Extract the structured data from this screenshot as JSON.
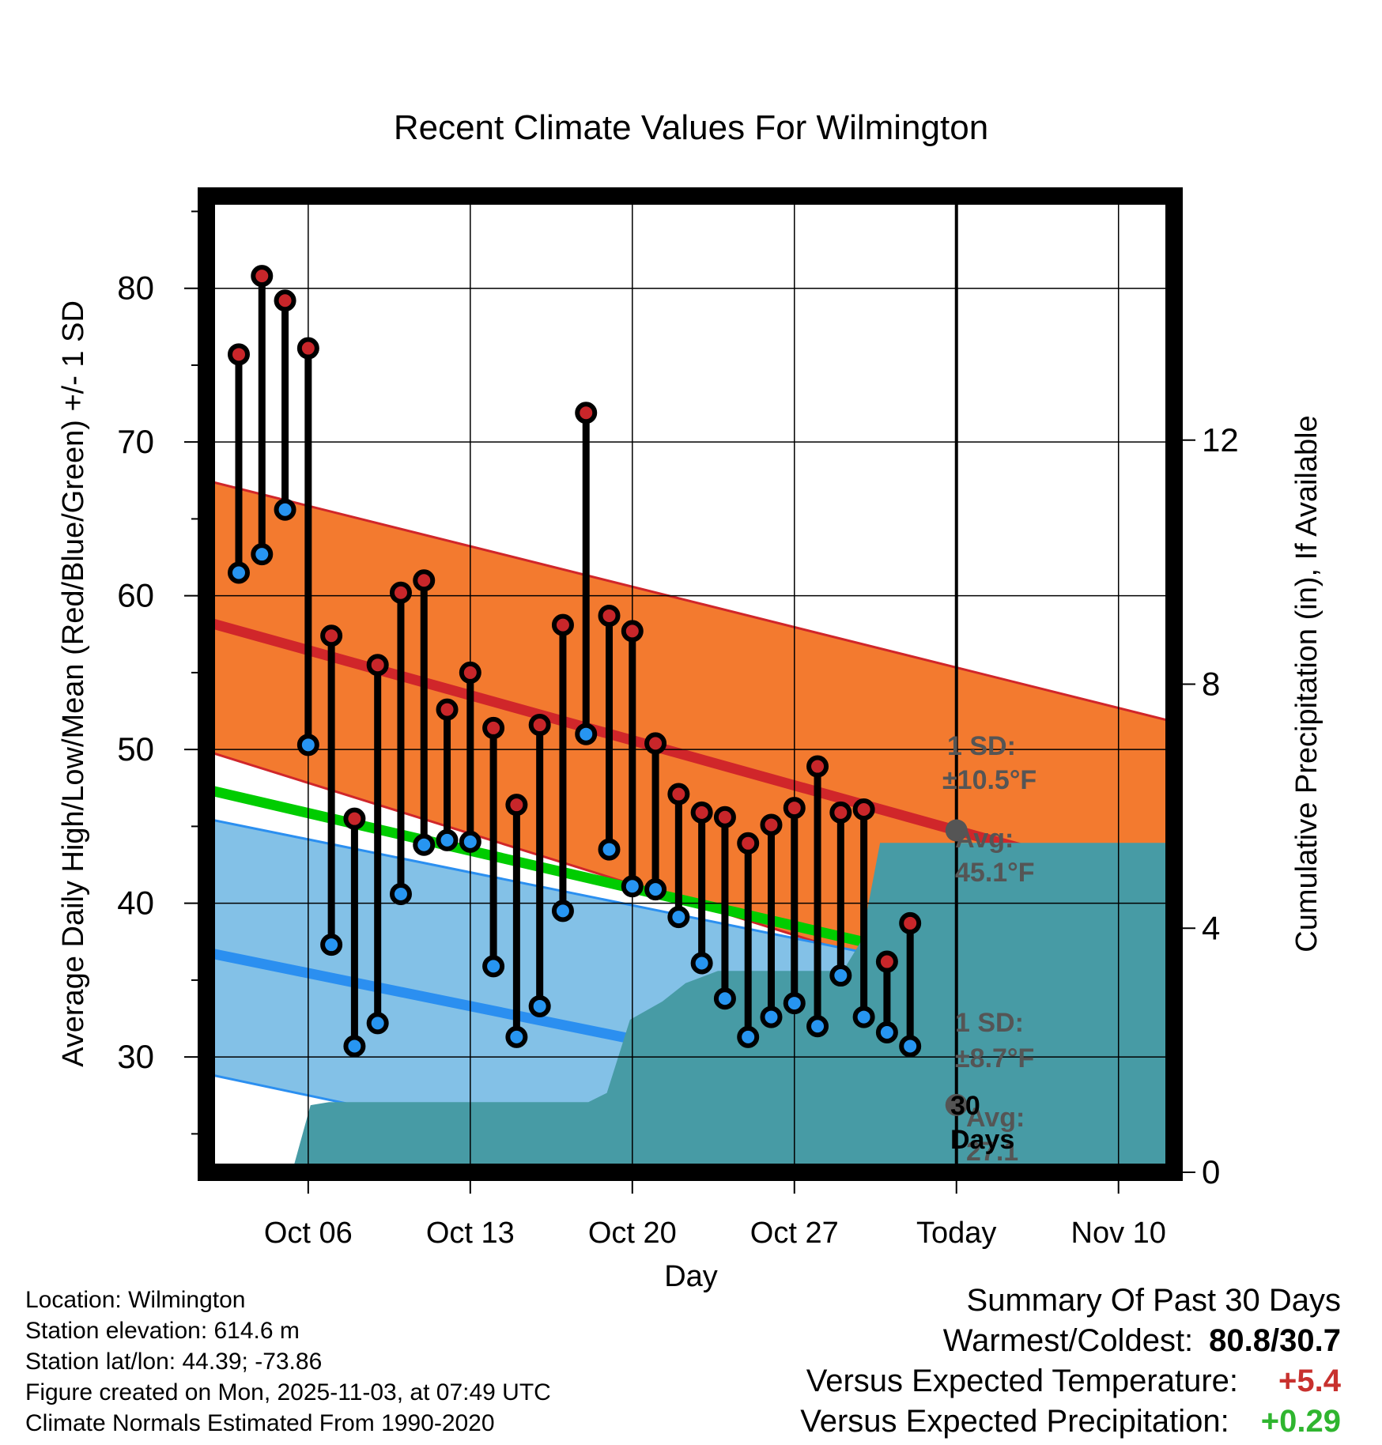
{
  "chart_data": {
    "type": "line",
    "title": "Recent Climate Values For Wilmington",
    "xlabel": "Day",
    "ylabel": "Average Daily High/Low/Mean (Red/Blue/Green) +/- 1 SD",
    "y2label": "Cumulative Precipitation (in), If Available",
    "ylim": [
      22.5,
      86
    ],
    "y2lim": [
      0,
      16
    ],
    "xlim": [
      1.6,
      43.4
    ],
    "x_ticks": [
      {
        "x": 6,
        "label": "Oct 06"
      },
      {
        "x": 13,
        "label": "Oct 13"
      },
      {
        "x": 20,
        "label": "Oct 20"
      },
      {
        "x": 27,
        "label": "Oct 27"
      },
      {
        "x": 34,
        "label": "Today"
      },
      {
        "x": 41,
        "label": "Nov 10"
      }
    ],
    "y_ticks": [
      30,
      40,
      50,
      60,
      70,
      80
    ],
    "y2_ticks": [
      0,
      4,
      8,
      12
    ],
    "grid": true,
    "today_x": 34,
    "normal_high": {
      "start": 58.3,
      "end": 40.8
    },
    "normal_high_band": {
      "upper_start": 67.5,
      "upper_end": 51.8,
      "lower_start": 49.9,
      "lower_end": 30.2
    },
    "normal_low": {
      "start": 36.8,
      "end": 24.0
    },
    "normal_low_band": {
      "upper_start": 45.5,
      "upper_end": 32.7,
      "lower_start": 28.9,
      "lower_end": 15.6
    },
    "normal_mean": {
      "start": 47.4,
      "end": 32.8
    },
    "series": [
      {
        "name": "Daily High",
        "x": [
          3,
          4,
          5,
          6,
          7,
          8,
          9,
          10,
          11,
          12,
          13,
          14,
          15,
          16,
          17,
          18,
          19,
          20,
          21,
          22,
          23,
          24,
          25,
          26,
          27,
          28,
          29,
          30,
          31,
          32,
          33
        ],
        "values": [
          75.7,
          80.8,
          79.2,
          76.1,
          57.4,
          45.5,
          55.5,
          60.2,
          61.0,
          52.6,
          55.0,
          51.4,
          46.4,
          51.6,
          58.1,
          71.9,
          58.7,
          57.7,
          50.4,
          47.1,
          45.9,
          45.6,
          43.9,
          45.1,
          46.2,
          48.9,
          45.9,
          46.1,
          36.2,
          38.7,
          null
        ]
      },
      {
        "name": "Daily Low",
        "x": [
          3,
          4,
          5,
          6,
          7,
          8,
          9,
          10,
          11,
          12,
          13,
          14,
          15,
          16,
          17,
          18,
          19,
          20,
          21,
          22,
          23,
          24,
          25,
          26,
          27,
          28,
          29,
          30,
          31,
          32,
          33
        ],
        "values": [
          61.5,
          62.7,
          65.6,
          50.3,
          37.3,
          30.7,
          32.2,
          40.6,
          43.8,
          44.1,
          44.0,
          35.9,
          31.3,
          33.3,
          39.5,
          51.0,
          43.5,
          41.1,
          40.9,
          39.1,
          36.1,
          33.8,
          31.3,
          32.6,
          33.5,
          32.0,
          35.3,
          32.6,
          31.6,
          30.7,
          null
        ]
      },
      {
        "name": "Cumulative Precipitation (in)",
        "x": [
          5.3,
          6.1,
          6.9,
          18.1,
          18.9,
          19.9,
          21.3,
          22.3,
          23.7,
          29.1,
          29.9,
          30.7
        ],
        "values": [
          0,
          1.1,
          1.15,
          1.15,
          1.3,
          2.5,
          2.8,
          3.1,
          3.3,
          3.3,
          3.8,
          5.4
        ]
      }
    ],
    "annotations": {
      "high_sd_label": "1 SD:",
      "high_sd_value": "±10.5°F",
      "high_avg_label": "Avg:",
      "high_avg_value": "45.1°F",
      "low_sd_label": "1 SD:",
      "low_sd_value": "±8.7°F",
      "low_avg_label": "Avg:",
      "low_avg_value": "27.1",
      "days_line1": "30",
      "days_line2": "Days"
    },
    "colors": {
      "high_band": "#f37a2f",
      "high_line": "#d0262a",
      "low_band": "#83c1e7",
      "low_line": "#2b8ff0",
      "mean_line": "#00cc00",
      "precip": "#479ba5",
      "high_marker": "#c8262a",
      "low_marker": "#2795f1",
      "annotation": "#555555"
    }
  },
  "info": {
    "location": "Location: Wilmington",
    "elevation": "Station elevation: 614.6 m",
    "latlon": "Station lat/lon: 44.39; -73.86",
    "created": "Figure created on Mon, 2025-11-03, at 07:49 UTC",
    "normals": "Climate Normals Estimated From 1990-2020"
  },
  "summary": {
    "title": "Summary Of Past 30 Days",
    "warm_label": "Warmest/Coldest:",
    "warm_value": "80.8/30.7",
    "temp_label": "Versus Expected Temperature:",
    "temp_value": "+5.4",
    "precip_label": "Versus Expected Precipitation:",
    "precip_value": "+0.29"
  }
}
